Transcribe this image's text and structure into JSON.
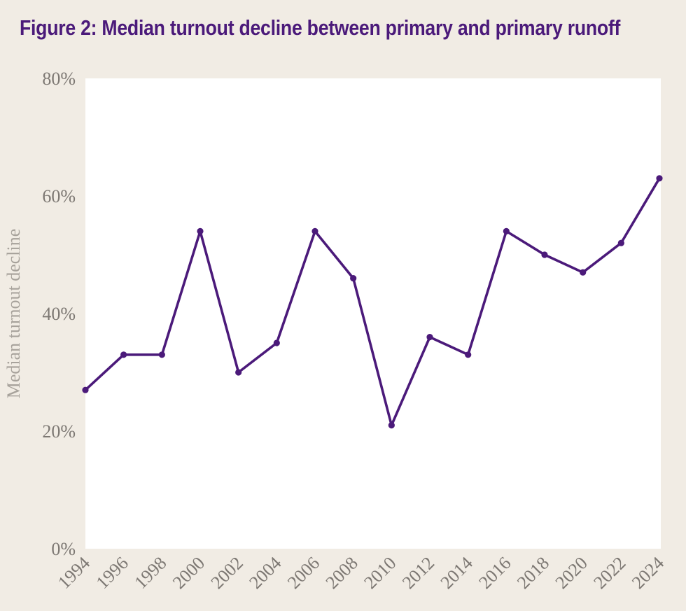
{
  "chart_data": {
    "type": "line",
    "title": "Figure 2: Median turnout decline between primary and primary runoff",
    "xlabel": "",
    "ylabel": "Median turnout decline",
    "x": [
      "1994",
      "1996",
      "1998",
      "2000",
      "2002",
      "2004",
      "2006",
      "2008",
      "2010",
      "2012",
      "2014",
      "2016",
      "2018",
      "2020",
      "2022",
      "2024"
    ],
    "series": [
      {
        "values": [
          27,
          33,
          33,
          54,
          30,
          35,
          54,
          46,
          21,
          36,
          33,
          54,
          50,
          47,
          52,
          63
        ]
      }
    ],
    "ylim": [
      0,
      80
    ],
    "yticks": [
      "0%",
      "20%",
      "40%",
      "60%",
      "80%"
    ],
    "grid": false,
    "colors": {
      "line": "#4b1a7a",
      "plot_bg": "#ffffff",
      "page_bg": "#f1ece4"
    }
  }
}
